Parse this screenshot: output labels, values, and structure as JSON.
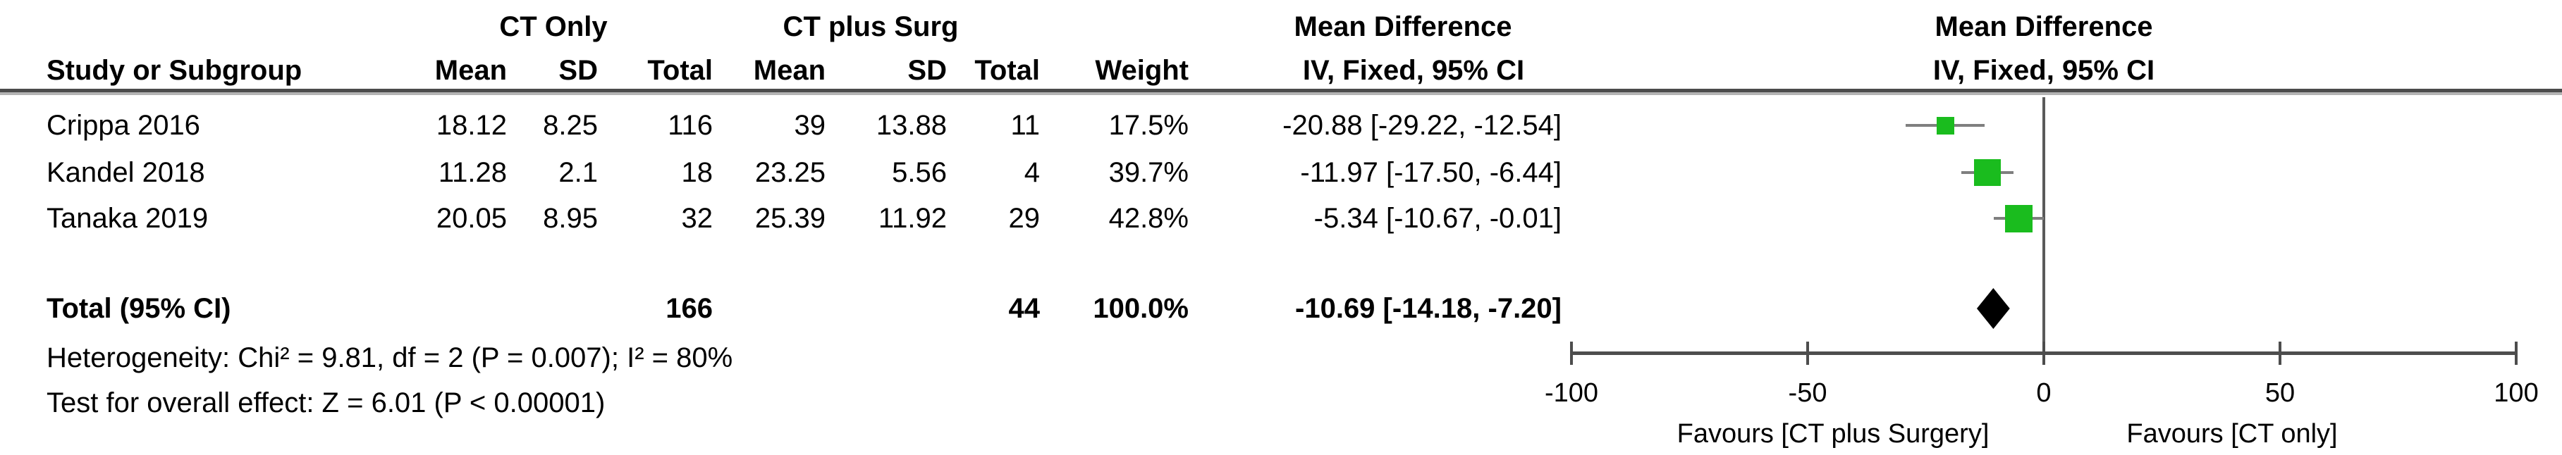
{
  "title_headers": {
    "group1": "CT Only",
    "group2": "CT plus Surg",
    "effect_col_title": "Mean Difference",
    "effect_col_subtitle": "IV, Fixed, 95% CI",
    "plot_title": "Mean Difference",
    "plot_subtitle": "IV, Fixed, 95% CI"
  },
  "columns": {
    "study": "Study or Subgroup",
    "mean": "Mean",
    "sd": "SD",
    "total": "Total",
    "weight": "Weight"
  },
  "chart_data": {
    "type": "forest",
    "effect_measure": "Mean Difference",
    "model": "IV, Fixed, 95% CI",
    "studies": [
      {
        "name": "Crippa 2016",
        "mean1": "18.12",
        "sd1": "8.25",
        "total1": "116",
        "mean2": "39",
        "sd2": "13.88",
        "total2": "11",
        "weight": "17.5%",
        "weight_pct": 17.5,
        "md": -20.88,
        "ci_low": -29.22,
        "ci_high": -12.54,
        "ci_label": "-20.88 [-29.22, -12.54]"
      },
      {
        "name": "Kandel 2018",
        "mean1": "11.28",
        "sd1": "2.1",
        "total1": "18",
        "mean2": "23.25",
        "sd2": "5.56",
        "total2": "4",
        "weight": "39.7%",
        "weight_pct": 39.7,
        "md": -11.97,
        "ci_low": -17.5,
        "ci_high": -6.44,
        "ci_label": "-11.97 [-17.50, -6.44]"
      },
      {
        "name": "Tanaka 2019",
        "mean1": "20.05",
        "sd1": "8.95",
        "total1": "32",
        "mean2": "25.39",
        "sd2": "11.92",
        "total2": "29",
        "weight": "42.8%",
        "weight_pct": 42.8,
        "md": -5.34,
        "ci_low": -10.67,
        "ci_high": -0.01,
        "ci_label": "-5.34 [-10.67, -0.01]"
      }
    ],
    "total": {
      "name": "Total (95% CI)",
      "total1": "166",
      "total2": "44",
      "weight": "100.0%",
      "weight_pct": 100.0,
      "md": -10.69,
      "ci_low": -14.18,
      "ci_high": -7.2,
      "ci_label": "-10.69 [-14.18, -7.20]"
    },
    "footnotes": {
      "heterogeneity": "Heterogeneity: Chi² = 9.81, df = 2 (P = 0.007); I² = 80%",
      "overall_effect": "Test for overall effect: Z = 6.01 (P < 0.00001)"
    },
    "x_axis": {
      "range": [
        -100,
        100
      ],
      "ticks": [
        -100,
        -50,
        0,
        50,
        100
      ],
      "tick_labels": [
        "-100",
        "-50",
        "0",
        "50",
        "100"
      ]
    },
    "favours_left": "Favours [CT plus Surgery]",
    "favours_right": "Favours [CT only]",
    "colors": {
      "marker": "#1abc1e",
      "diamond": "#000000",
      "ci_line": "#7f7f7f",
      "axis": "#4d4d4d"
    }
  }
}
